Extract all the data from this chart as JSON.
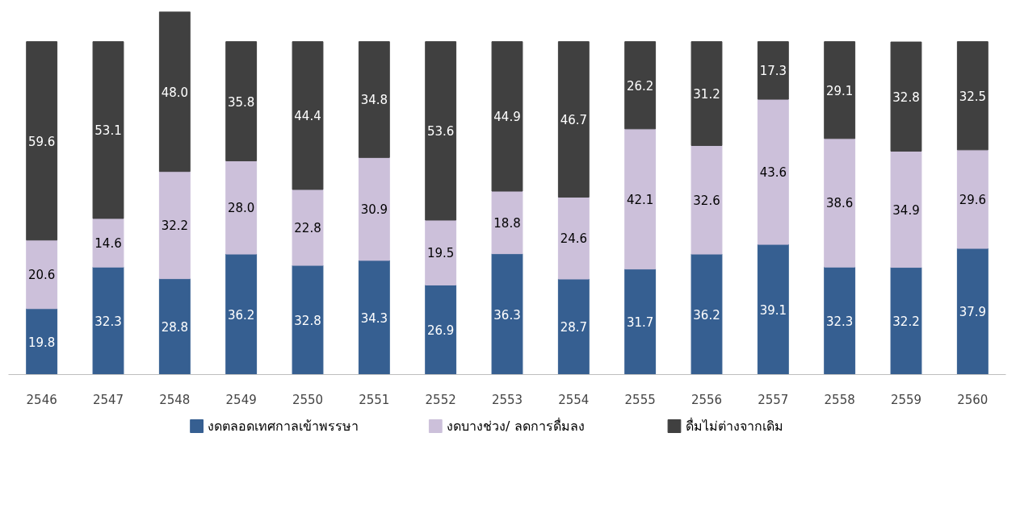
{
  "chart_data": {
    "type": "bar",
    "stacked": true,
    "legend": "bottom",
    "grid": false,
    "categories": [
      "2546",
      "2547",
      "2548",
      "2549",
      "2550",
      "2551",
      "2552",
      "2553",
      "2554",
      "2555",
      "2556",
      "2557",
      "2558",
      "2559",
      "2560"
    ],
    "series": [
      {
        "name": "งดตลอดเทศกาลเข้าพรรษา",
        "color": "#365f91",
        "values": [
          19.8,
          32.3,
          28.8,
          36.2,
          32.8,
          34.3,
          26.9,
          36.3,
          28.7,
          31.7,
          36.2,
          39.1,
          32.3,
          32.2,
          37.9
        ],
        "value_labels": [
          "19.8",
          "32.3",
          "28.8",
          "36.2",
          "32.8",
          "34.3",
          "26.9",
          "36.3",
          "28.7",
          "31.7",
          "36.2",
          "39.1",
          "32.3",
          "32.2",
          "37.9"
        ]
      },
      {
        "name": "งดบางช่วง/ ลดการดื่มลง",
        "color": "#ccc0da",
        "values": [
          20.6,
          14.6,
          32.2,
          28.0,
          22.8,
          30.9,
          19.5,
          18.8,
          24.6,
          42.1,
          32.6,
          43.6,
          38.6,
          34.9,
          29.6
        ],
        "value_labels": [
          "20.6",
          "14.6",
          "32.2",
          "28.0",
          "22.8",
          "30.9",
          "19.5",
          "18.8",
          "24.6",
          "42.1",
          "32.6",
          "43.6",
          "38.6",
          "34.9",
          "29.6"
        ]
      },
      {
        "name": "ดื่มไม่ต่างจากเดิม",
        "color": "#404040",
        "values": [
          59.6,
          53.1,
          48.0,
          35.8,
          44.4,
          34.8,
          53.6,
          44.9,
          46.7,
          26.2,
          31.2,
          17.3,
          29.1,
          32.8,
          32.5
        ],
        "value_labels": [
          "59.6",
          "53.1",
          "48.0",
          "35.8",
          "44.4",
          "34.8",
          "53.6",
          "44.9",
          "46.7",
          "26.2",
          "31.2",
          "17.3",
          "29.1",
          "32.8",
          "32.5"
        ]
      }
    ]
  }
}
